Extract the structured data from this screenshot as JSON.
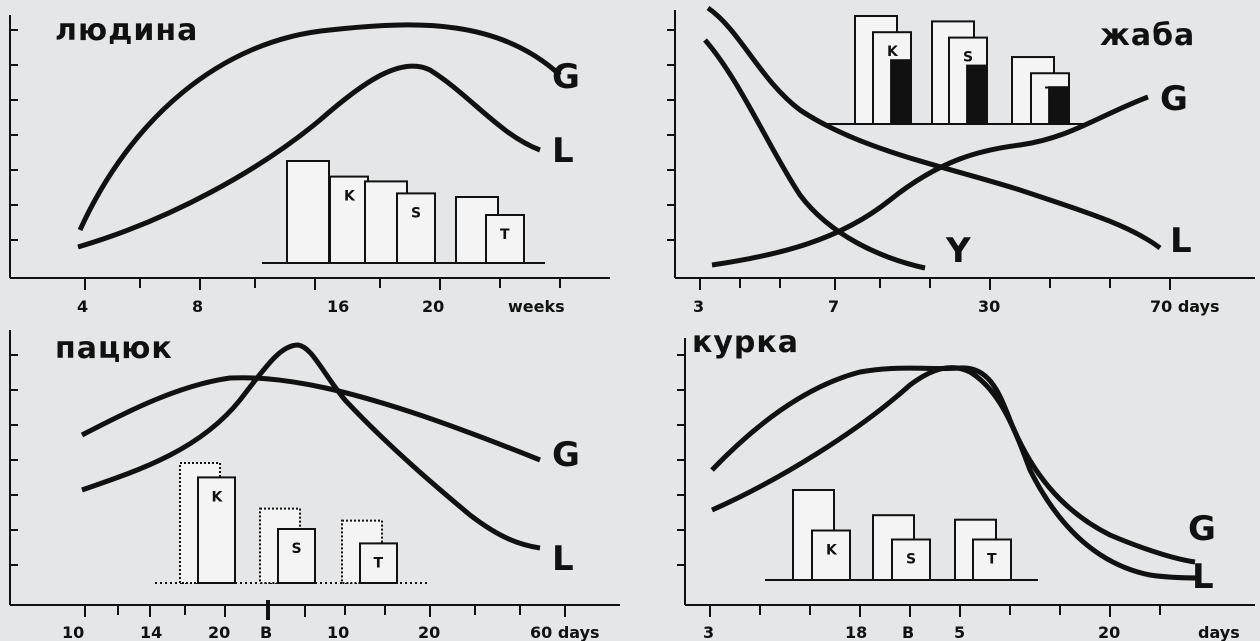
{
  "chart_data": [
    {
      "type": "line",
      "title": "людина",
      "x_tick_labels": [
        "4",
        "8",
        "16",
        "20",
        "weeks"
      ],
      "curves": [
        {
          "label": "G",
          "trend": "rises, peaks near week 20, declines"
        },
        {
          "label": "L",
          "trend": "rises to a later peak, then declines"
        }
      ],
      "bar_groups": [
        {
          "label": "K",
          "heights": [
            0.85,
            0.72
          ]
        },
        {
          "label": "S",
          "heights": [
            0.68,
            0.58
          ]
        },
        {
          "label": "T",
          "heights": [
            0.55,
            0.4
          ]
        }
      ]
    },
    {
      "type": "line",
      "title": "жаба",
      "x_tick_labels": [
        "3",
        "7",
        "30",
        "70 days"
      ],
      "curves": [
        {
          "label": "G",
          "trend": "rises"
        },
        {
          "label": "L",
          "trend": "declines"
        },
        {
          "label": "Y",
          "trend": "steep decline"
        }
      ],
      "bar_groups": [
        {
          "label": "K",
          "heights": [
            1.0,
            0.85
          ],
          "filled_fraction": 0.6
        },
        {
          "label": "S",
          "heights": [
            0.95,
            0.8
          ],
          "filled_fraction": 0.55
        },
        {
          "label": "T",
          "heights": [
            0.62,
            0.47
          ],
          "filled_fraction": 0.35
        }
      ]
    },
    {
      "type": "line",
      "title": "пацюк",
      "x_tick_labels": [
        "10",
        "14",
        "20",
        "B",
        "10",
        "20",
        "60 days"
      ],
      "curves": [
        {
          "label": "G",
          "trend": "broad peak, declines"
        },
        {
          "label": "L",
          "trend": "sharp peak near birth, declines"
        }
      ],
      "bar_groups": [
        {
          "label": "K",
          "heights": [
            1.0,
            0.88
          ]
        },
        {
          "label": "S",
          "heights": [
            0.62,
            0.45
          ]
        },
        {
          "label": "T",
          "heights": [
            0.52,
            0.33
          ]
        }
      ]
    },
    {
      "type": "line",
      "title": "курка",
      "x_tick_labels": [
        "3",
        "18",
        "B",
        "5",
        "20",
        "days"
      ],
      "curves": [
        {
          "label": "G",
          "trend": "peaks near hatching, declines"
        },
        {
          "label": "L",
          "trend": "later peak, declines"
        }
      ],
      "bar_groups": [
        {
          "label": "K",
          "heights": [
            1.0,
            0.55
          ]
        },
        {
          "label": "S",
          "heights": [
            0.72,
            0.45
          ]
        },
        {
          "label": "T",
          "heights": [
            0.67,
            0.45
          ]
        }
      ]
    }
  ]
}
